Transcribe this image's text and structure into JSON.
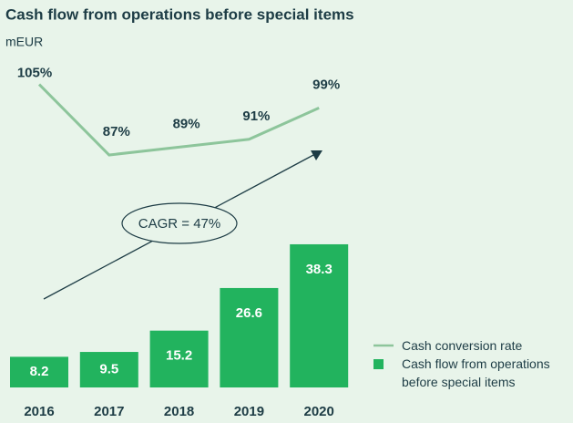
{
  "chart_data": {
    "type": "bar",
    "title": "Cash flow from operations before special items",
    "subtitle": "mEUR",
    "categories": [
      "2016",
      "2017",
      "2018",
      "2019",
      "2020"
    ],
    "series": [
      {
        "name": "Cash flow from operations before special items",
        "type": "bar",
        "color": "#22b35e",
        "values": [
          8.2,
          9.5,
          15.2,
          26.6,
          38.3
        ]
      },
      {
        "name": "Cash conversion rate",
        "type": "line",
        "color": "#8dc59b",
        "values": [
          105,
          87,
          89,
          91,
          99
        ],
        "value_labels": [
          "105%",
          "87%",
          "89%",
          "91%",
          "99%"
        ]
      }
    ],
    "annotation": "CAGR = 47%"
  }
}
